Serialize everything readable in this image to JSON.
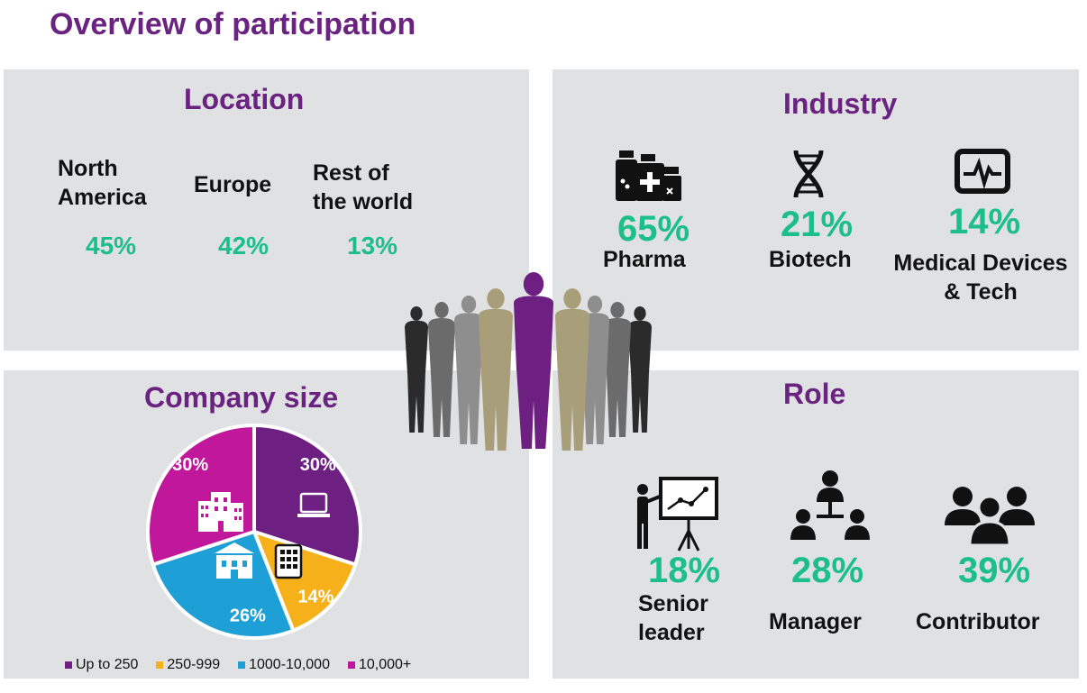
{
  "title": "Overview of participation",
  "location": {
    "title": "Location",
    "items": [
      {
        "label_line1": "North",
        "label_line2": "America",
        "pct": "45%"
      },
      {
        "label_line1": "Europe",
        "label_line2": "",
        "pct": "42%"
      },
      {
        "label_line1": "Rest of",
        "label_line2": "the world",
        "pct": "13%"
      }
    ]
  },
  "industry": {
    "title": "Industry",
    "items": [
      {
        "label_line1": "Pharma",
        "label_line2": "",
        "pct": "65%",
        "icon": "medicine-bottles-icon"
      },
      {
        "label_line1": "Biotech",
        "label_line2": "",
        "pct": "21%",
        "icon": "dna-icon"
      },
      {
        "label_line1": "Medical Devices",
        "label_line2": "& Tech",
        "pct": "14%",
        "icon": "heart-monitor-icon"
      }
    ]
  },
  "company_size": {
    "title": "Company size",
    "legend": [
      "Up to 250",
      "250-999",
      "1000-10,000",
      "10,000+"
    ],
    "colors": [
      "#6e1f82",
      "#f6b11a",
      "#1ea0d6",
      "#c0179b"
    ]
  },
  "role": {
    "title": "Role",
    "items": [
      {
        "label_line1": "Senior",
        "label_line2": "leader",
        "pct": "18%",
        "icon": "presentation-icon"
      },
      {
        "label_line1": "Manager",
        "label_line2": "",
        "pct": "28%",
        "icon": "org-chart-icon"
      },
      {
        "label_line1": "Contributor",
        "label_line2": "",
        "pct": "39%",
        "icon": "team-icon"
      }
    ]
  },
  "chart_data": {
    "type": "pie",
    "categories": [
      "Up to 250",
      "250-999",
      "1000-10,000",
      "10,000+"
    ],
    "values": [
      30,
      14,
      26,
      30
    ],
    "labels": [
      "30%",
      "14%",
      "26%",
      "30%"
    ],
    "colors": [
      "#6e1f82",
      "#f6b11a",
      "#1ea0d6",
      "#c0179b"
    ],
    "legend_position": "bottom"
  }
}
